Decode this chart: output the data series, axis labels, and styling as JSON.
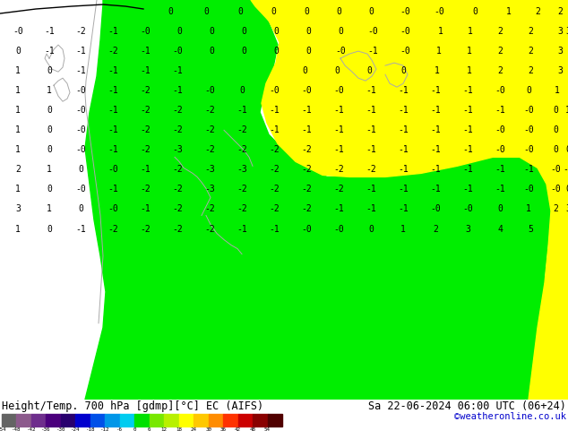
{
  "title_left": "Height/Temp. 700 hPa [gdmp][°C] EC (AIFS)",
  "title_right": "Sa 22-06-2024 06:00 UTC (06+24)",
  "copyright": "©weatheronline.co.uk",
  "bg_color": "#ffff00",
  "green_color": "#00ee00",
  "fig_width": 6.34,
  "fig_height": 4.9,
  "dpi": 100,
  "colorbar_values": [
    -54,
    -48,
    -42,
    -36,
    -30,
    -24,
    -18,
    -12,
    -6,
    0,
    6,
    12,
    18,
    24,
    30,
    36,
    42,
    48,
    54
  ],
  "colorbar_colors": [
    "#646464",
    "#8c5a8c",
    "#6e2e8c",
    "#4b007d",
    "#28006e",
    "#0000cd",
    "#0050e8",
    "#0096e8",
    "#00ccf0",
    "#00e000",
    "#78e800",
    "#b8f000",
    "#ffff00",
    "#ffc800",
    "#ff8c00",
    "#ff3200",
    "#cc0000",
    "#8a0000",
    "#500000"
  ],
  "coast_color": "#aaaaaa",
  "border_color": "#aaaaaa",
  "black_line_color": "#000000"
}
